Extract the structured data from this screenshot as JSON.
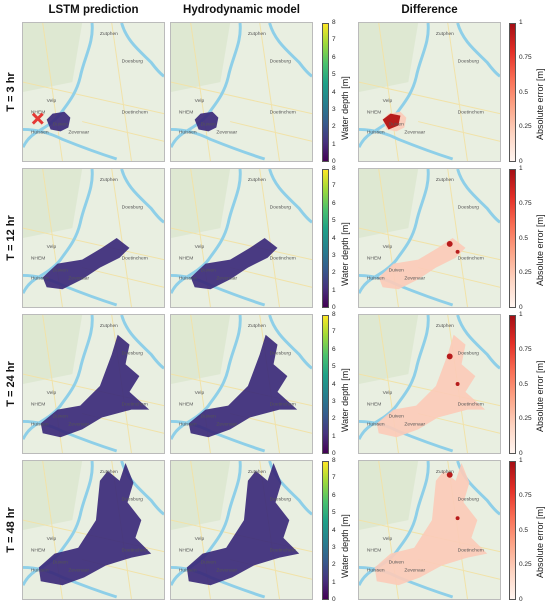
{
  "columns": [
    "LSTM prediction",
    "Hydrodynamic model",
    "Difference"
  ],
  "rows": [
    "T = 3 hr",
    "T = 12 hr",
    "T = 24 hr",
    "T = 48 hr"
  ],
  "depth_colorbar": {
    "label": "Water depth [m]",
    "ticks": [
      "0",
      "1",
      "2",
      "3",
      "4",
      "5",
      "6",
      "7",
      "8"
    ]
  },
  "error_colorbar": {
    "label": "Absolute error [m]",
    "ticks": [
      "0",
      "0.25",
      "0.5",
      "0.75",
      "1"
    ]
  },
  "places": {
    "zutphen": "Zutphen",
    "doesburg": "Doesburg",
    "doetinchem": "Doetinchem",
    "velp": "Velp",
    "arnhem": "NHEM",
    "huissen": "Huissen",
    "zevenaar": "Zevenaar",
    "duiven": "Duiven"
  },
  "colors": {
    "river": "#8ecfe8",
    "map_bg": "#e9efe1",
    "flood_depth": "#3b2a7a",
    "error_high": "#b71c1c",
    "error_low": "#fbcbb8"
  }
}
